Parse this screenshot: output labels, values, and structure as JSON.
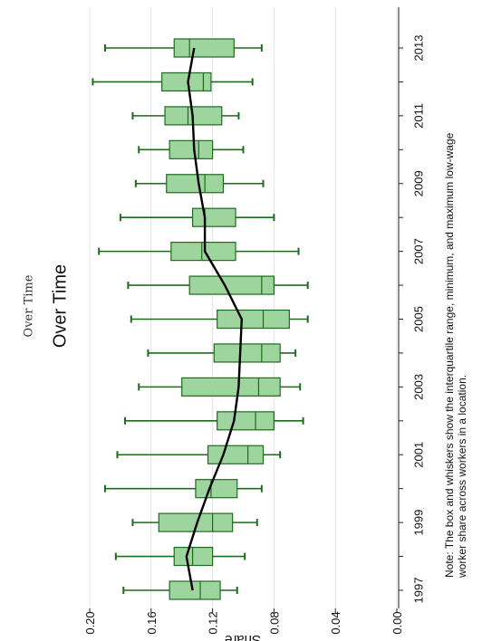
{
  "titles": {
    "small": "Over Time",
    "large": "Over Time"
  },
  "note": {
    "line1": "Note: The box and whiskers show the interquartile range, minimum, and maximum low-wage",
    "line2": "worker share across workers in a location."
  },
  "colors": {
    "box_fill": "#9ed49e",
    "box_edge": "#1e6b1e",
    "whisker": "#1e6b1e",
    "mean_line": "#000000",
    "grid": "#e3e3e3"
  },
  "chart_data": {
    "type": "box",
    "orientation": "rotated",
    "ylabel": "Share",
    "xlabel": "",
    "ylim": [
      0,
      0.2
    ],
    "y_ticks": [
      "0.00",
      "0.04",
      "0.08",
      "0.12",
      "0.16",
      "0.20"
    ],
    "x_tick_labels": [
      "1997",
      "1999",
      "2001",
      "2003",
      "2005",
      "2007",
      "2009",
      "2011",
      "2013"
    ],
    "grid": true,
    "categories": [
      "1997",
      "1998",
      "1999",
      "2000",
      "2001",
      "2002",
      "2003",
      "2004",
      "2005",
      "2006",
      "2007",
      "2008",
      "2009",
      "2010",
      "2011",
      "2012",
      "2013"
    ],
    "boxes": [
      {
        "year": "1997",
        "min": 0.104,
        "q1": 0.115,
        "median": 0.128,
        "q3": 0.148,
        "max": 0.178
      },
      {
        "year": "1998",
        "min": 0.099,
        "q1": 0.12,
        "median": 0.133,
        "q3": 0.145,
        "max": 0.183
      },
      {
        "year": "1999",
        "min": 0.091,
        "q1": 0.107,
        "median": 0.12,
        "q3": 0.155,
        "max": 0.172
      },
      {
        "year": "2000",
        "min": 0.088,
        "q1": 0.104,
        "median": 0.121,
        "q3": 0.131,
        "max": 0.19
      },
      {
        "year": "2001",
        "min": 0.076,
        "q1": 0.087,
        "median": 0.097,
        "q3": 0.123,
        "max": 0.182
      },
      {
        "year": "2002",
        "min": 0.061,
        "q1": 0.08,
        "median": 0.092,
        "q3": 0.117,
        "max": 0.177
      },
      {
        "year": "2003",
        "min": 0.063,
        "q1": 0.076,
        "median": 0.09,
        "q3": 0.14,
        "max": 0.168
      },
      {
        "year": "2004",
        "min": 0.066,
        "q1": 0.076,
        "median": 0.088,
        "q3": 0.119,
        "max": 0.162
      },
      {
        "year": "2005",
        "min": 0.058,
        "q1": 0.07,
        "median": 0.087,
        "q3": 0.117,
        "max": 0.173
      },
      {
        "year": "2006",
        "min": 0.058,
        "q1": 0.08,
        "median": 0.088,
        "q3": 0.135,
        "max": 0.175
      },
      {
        "year": "2007",
        "min": 0.064,
        "q1": 0.105,
        "median": 0.127,
        "q3": 0.147,
        "max": 0.194
      },
      {
        "year": "2008",
        "min": 0.08,
        "q1": 0.105,
        "median": 0.125,
        "q3": 0.133,
        "max": 0.18
      },
      {
        "year": "2009",
        "min": 0.087,
        "q1": 0.113,
        "median": 0.125,
        "q3": 0.15,
        "max": 0.17
      },
      {
        "year": "2010",
        "min": 0.1,
        "q1": 0.12,
        "median": 0.129,
        "q3": 0.148,
        "max": 0.168
      },
      {
        "year": "2011",
        "min": 0.103,
        "q1": 0.114,
        "median": 0.136,
        "q3": 0.151,
        "max": 0.172
      },
      {
        "year": "2012",
        "min": 0.094,
        "q1": 0.121,
        "median": 0.126,
        "q3": 0.153,
        "max": 0.198
      },
      {
        "year": "2013",
        "min": 0.088,
        "q1": 0.106,
        "median": 0.135,
        "q3": 0.145,
        "max": 0.19
      }
    ],
    "mean_series": {
      "name": "",
      "values": [
        0.133,
        0.137,
        0.13,
        0.122,
        0.113,
        0.106,
        0.103,
        0.102,
        0.101,
        0.112,
        0.125,
        0.125,
        0.129,
        0.132,
        0.133,
        0.136,
        0.132
      ]
    }
  }
}
